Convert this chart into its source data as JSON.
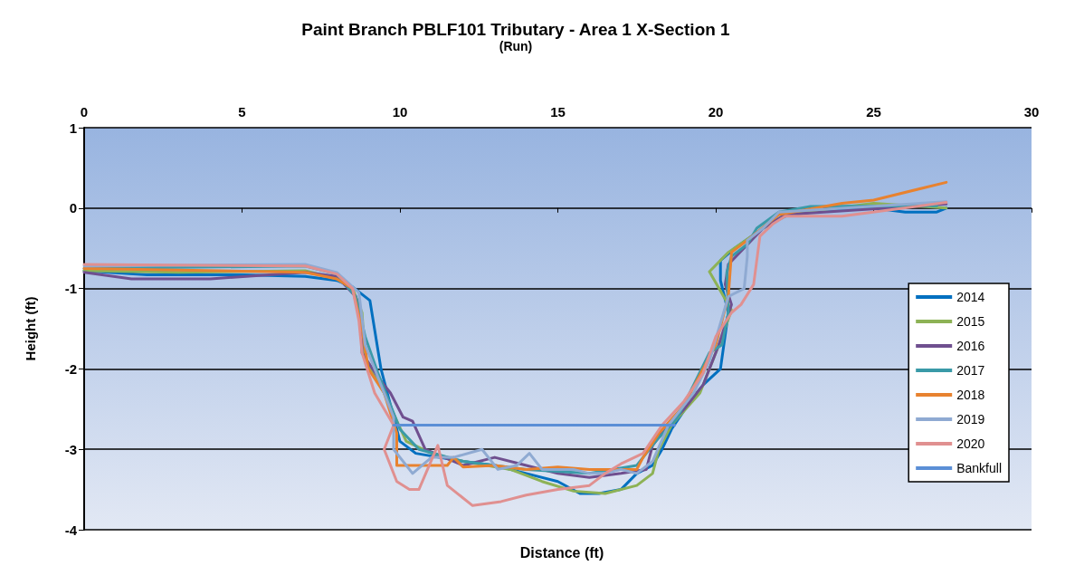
{
  "chart_data": {
    "type": "line",
    "title": "Paint Branch PBLF101 Tributary - Area 1 X-Section 1",
    "subtitle": "(Run)",
    "xlabel": "Distance (ft)",
    "ylabel": "Height (ft)",
    "xlim": [
      0,
      30
    ],
    "xticks": [
      0,
      5,
      10,
      15,
      20,
      25,
      30
    ],
    "ylim": [
      -4,
      1
    ],
    "yticks": [
      -4,
      -3,
      -2,
      -1,
      0,
      1
    ],
    "grid": "y",
    "legend": "right",
    "marker": "none",
    "line_style": "solid",
    "series": [
      {
        "name": "2014",
        "color": "#0070c0",
        "x": [
          0,
          2,
          5,
          7,
          8,
          8.5,
          9.05,
          9.4,
          9.8,
          10,
          10.5,
          12,
          13,
          14,
          15,
          15.7,
          16.3,
          17,
          17.5,
          18,
          18.3,
          18.6,
          19.2,
          19.6,
          20.15,
          20.4,
          20.15,
          20.15,
          20.6,
          21.5,
          22.2,
          23,
          25,
          26,
          27,
          27.3
        ],
        "values": [
          -0.78,
          -0.83,
          -0.83,
          -0.85,
          -0.9,
          -0.98,
          -1.15,
          -2.0,
          -2.6,
          -2.9,
          -3.05,
          -3.15,
          -3.2,
          -3.3,
          -3.4,
          -3.55,
          -3.55,
          -3.5,
          -3.3,
          -3.2,
          -3.0,
          -2.75,
          -2.4,
          -2.2,
          -2.0,
          -1.3,
          -0.9,
          -0.65,
          -0.5,
          -0.25,
          -0.1,
          -0.05,
          0.0,
          -0.05,
          -0.05,
          0.0
        ]
      },
      {
        "name": "2015",
        "color": "#8db255",
        "x": [
          0,
          3,
          7,
          8,
          8.5,
          8.8,
          8.9,
          9.5,
          10.2,
          11,
          12,
          13.5,
          14.5,
          15.5,
          16.5,
          17.5,
          18,
          18.2,
          18.6,
          19.5,
          20.2,
          20.5,
          19.8,
          20.4,
          21.5,
          22.2,
          25,
          27.3
        ],
        "values": [
          -0.78,
          -0.8,
          -0.78,
          -0.88,
          -1.0,
          -1.3,
          -1.9,
          -2.3,
          -2.9,
          -3.05,
          -3.15,
          -3.25,
          -3.4,
          -3.52,
          -3.55,
          -3.45,
          -3.3,
          -3.0,
          -2.7,
          -2.3,
          -1.6,
          -1.27,
          -0.79,
          -0.55,
          -0.25,
          -0.08,
          0.06,
          0.0
        ]
      },
      {
        "name": "2016",
        "color": "#6f4f8f",
        "x": [
          0,
          1.5,
          4,
          7,
          8,
          8.6,
          8.8,
          8.8,
          9.3,
          9.7,
          10.1,
          10.4,
          10.8,
          12,
          13,
          14,
          15,
          16,
          17,
          17.8,
          18,
          18.3,
          19,
          19.6,
          20.1,
          20.5,
          20.3,
          20.4,
          21.5,
          22.2,
          27.3
        ],
        "values": [
          -0.8,
          -0.88,
          -0.88,
          -0.8,
          -0.85,
          -1.1,
          -1.4,
          -1.8,
          -2.1,
          -2.3,
          -2.6,
          -2.65,
          -3.0,
          -3.2,
          -3.1,
          -3.2,
          -3.3,
          -3.35,
          -3.3,
          -3.25,
          -2.95,
          -2.8,
          -2.5,
          -2.2,
          -1.7,
          -1.2,
          -0.95,
          -0.7,
          -0.25,
          -0.08,
          0.05
        ]
      },
      {
        "name": "2017",
        "color": "#3a9aa8",
        "x": [
          0,
          7,
          8,
          8.6,
          8.9,
          9.3,
          10,
          10.6,
          12,
          14,
          16,
          17.5,
          18.1,
          18.8,
          19.3,
          19.8,
          20.2,
          20.4,
          20.35,
          20.5,
          21,
          21.3,
          22,
          23,
          27
        ],
        "values": [
          -0.75,
          -0.72,
          -0.82,
          -1.1,
          -1.6,
          -2.05,
          -2.75,
          -3.0,
          -3.15,
          -3.25,
          -3.3,
          -3.2,
          -2.9,
          -2.6,
          -2.2,
          -1.8,
          -1.7,
          -1.3,
          -0.8,
          -0.6,
          -0.45,
          -0.25,
          -0.05,
          0.02,
          0.03
        ]
      },
      {
        "name": "2018",
        "color": "#e8822f",
        "x": [
          0,
          7,
          8,
          8.5,
          8.8,
          9,
          9.5,
          9.9,
          9.9,
          11.5,
          11.7,
          12,
          13,
          14,
          15,
          16,
          17.5,
          17.7,
          18.2,
          19,
          19.6,
          20,
          20.4,
          20.5,
          21,
          22,
          24,
          25,
          27.3
        ],
        "values": [
          -0.75,
          -0.8,
          -0.88,
          -1.0,
          -1.5,
          -2.0,
          -2.3,
          -2.8,
          -3.2,
          -3.2,
          -3.1,
          -3.22,
          -3.2,
          -3.25,
          -3.22,
          -3.25,
          -3.25,
          -3.1,
          -2.8,
          -2.45,
          -2.0,
          -1.7,
          -1.1,
          -0.55,
          -0.4,
          -0.08,
          0.06,
          0.1,
          0.32
        ]
      },
      {
        "name": "2019",
        "color": "#8faad2",
        "x": [
          0,
          7,
          8,
          8.7,
          8.9,
          9.3,
          9.8,
          9.8,
          10.4,
          11,
          11.7,
          12.6,
          13.1,
          13.7,
          14.1,
          14.5,
          15.5,
          16,
          16.5,
          17,
          17.5,
          18,
          18.5,
          19.3,
          19.8,
          20.4,
          20.9,
          21,
          21,
          21.5,
          22,
          27.3
        ],
        "values": [
          -0.72,
          -0.7,
          -0.8,
          -1.05,
          -1.7,
          -2.1,
          -2.6,
          -3.0,
          -3.3,
          -3.1,
          -3.1,
          -3.0,
          -3.25,
          -3.2,
          -3.05,
          -3.25,
          -3.25,
          -3.3,
          -3.3,
          -3.25,
          -3.3,
          -3.15,
          -2.7,
          -2.3,
          -1.9,
          -1.1,
          -1.0,
          -0.6,
          -0.4,
          -0.25,
          -0.05,
          0.08
        ]
      },
      {
        "name": "2020",
        "color": "#e09090",
        "x": [
          0,
          7,
          8,
          8.5,
          8.7,
          8.8,
          9.2,
          9.8,
          9.5,
          9.9,
          10.3,
          10.6,
          11.2,
          11.5,
          12.3,
          13.2,
          14,
          15,
          16,
          16.5,
          17,
          17.7,
          18.3,
          19,
          19.6,
          20,
          20.5,
          20.8,
          21.2,
          21.4,
          21.8,
          22.2,
          24,
          27.3
        ],
        "values": [
          -0.7,
          -0.72,
          -0.82,
          -1.0,
          -1.4,
          -1.8,
          -2.3,
          -2.7,
          -3.0,
          -3.4,
          -3.5,
          -3.5,
          -2.95,
          -3.45,
          -3.7,
          -3.65,
          -3.57,
          -3.5,
          -3.45,
          -3.3,
          -3.18,
          -3.05,
          -2.7,
          -2.4,
          -2.05,
          -1.6,
          -1.3,
          -1.2,
          -0.95,
          -0.35,
          -0.2,
          -0.1,
          -0.1,
          0.07
        ]
      },
      {
        "name": "Bankfull",
        "color": "#5b8fd6",
        "x": [
          9.8,
          18.7
        ],
        "values": [
          -2.7,
          -2.7
        ]
      }
    ]
  }
}
